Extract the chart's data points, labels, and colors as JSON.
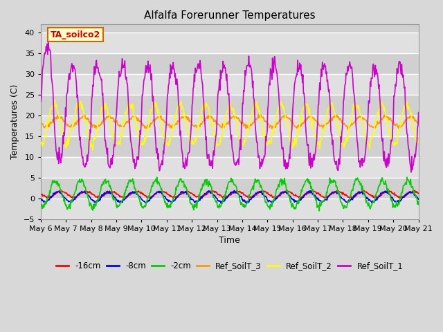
{
  "title": "Alfalfa Forerunner Temperatures",
  "xlabel": "Time",
  "ylabel": "Temperatures (C)",
  "annotation_label": "TA_soilco2",
  "annotation_box_facecolor": "#FFFFCC",
  "annotation_box_edgecolor": "#CC6600",
  "annotation_text_color": "#CC0000",
  "ylim": [
    -5,
    42
  ],
  "yticks": [
    -5,
    0,
    5,
    10,
    15,
    20,
    25,
    30,
    35,
    40
  ],
  "xtick_labels": [
    "May 6",
    "May 7",
    "May 8",
    "May 9",
    "May 10",
    "May 11",
    "May 12",
    "May 13",
    "May 14",
    "May 15",
    "May 16",
    "May 17",
    "May 18",
    "May 19",
    "May 20",
    "May 21"
  ],
  "fig_bg_color": "#D8D8D8",
  "plot_bg_color": "#D0D0D0",
  "band_light_color": "#E0E0E0",
  "band_dark_color": "#C8C8C8",
  "grid_color": "#FFFFFF",
  "legend_labels": [
    "-16cm",
    "-8cm",
    "-2cm",
    "Ref_SoilT_3",
    "Ref_SoilT_2",
    "Ref_SoilT_1"
  ],
  "legend_colors": [
    "#FF0000",
    "#0000FF",
    "#00CC00",
    "#FF9900",
    "#FFFF00",
    "#CC00CC"
  ]
}
